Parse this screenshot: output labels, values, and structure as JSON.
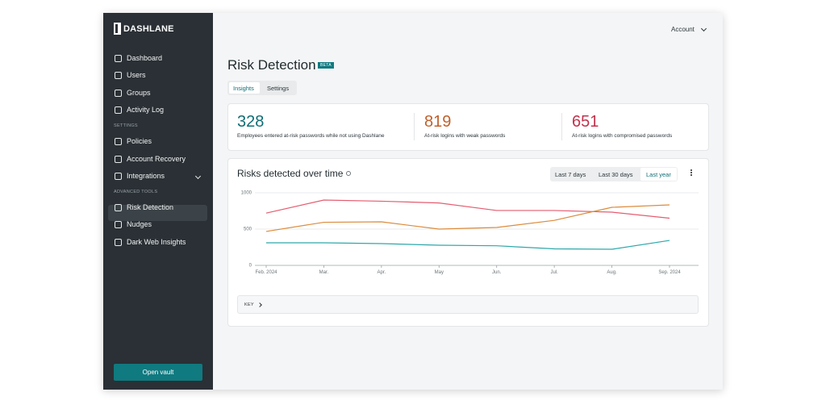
{
  "sidebar": {
    "logo": "DASHLANE",
    "groups": [
      {
        "items": [
          "Dashboard",
          "Users",
          "Groups",
          "Activity Log"
        ]
      },
      {
        "heading": "SETTINGS",
        "items": [
          "Policies",
          "Account Recovery",
          "Integrations"
        ]
      },
      {
        "heading": "ADVANCED TOOLS",
        "items": [
          "Risk Detection",
          "Nudges",
          "Dark Web Insights"
        ]
      }
    ],
    "button": "Open vault"
  },
  "header": {
    "account": "Account"
  },
  "page": {
    "title": "Risk Detection",
    "badge": "BETA",
    "tabs": [
      "Insights",
      "Settings"
    ]
  },
  "stats": [
    {
      "value": 328,
      "label": "Employees entered at-risk passwords while not using Dashlane",
      "color": "#0f6e75"
    },
    {
      "value": 819,
      "label": "At-risk logins with weak passwords",
      "color": "#c0602b"
    },
    {
      "value": 651,
      "label": "At-risk logins with compromised passwords",
      "color": "#c2324c"
    }
  ],
  "chart_card": {
    "title": "Risks detected over time",
    "ranges": [
      "Last 7 days",
      "Last 30 days",
      "Last year"
    ],
    "key": "KEY"
  },
  "chart_data": {
    "type": "line",
    "categories": [
      "Feb. 2024",
      "Mar.",
      "Apr.",
      "May",
      "Jun.",
      "Jul.",
      "Aug.",
      "Sep. 2024"
    ],
    "series": [
      {
        "color": "#e45d70",
        "values": [
          720,
          900,
          884,
          860,
          756,
          756,
          733,
          650
        ]
      },
      {
        "color": "#dc8b3c",
        "values": [
          467,
          594,
          600,
          500,
          522,
          620,
          800,
          833
        ]
      },
      {
        "color": "#2fa8aa",
        "values": [
          311,
          311,
          300,
          278,
          270,
          228,
          222,
          344
        ]
      }
    ],
    "ylim": [
      0,
      1000
    ],
    "yticks": [
      0,
      500,
      1000
    ],
    "grid": true
  }
}
